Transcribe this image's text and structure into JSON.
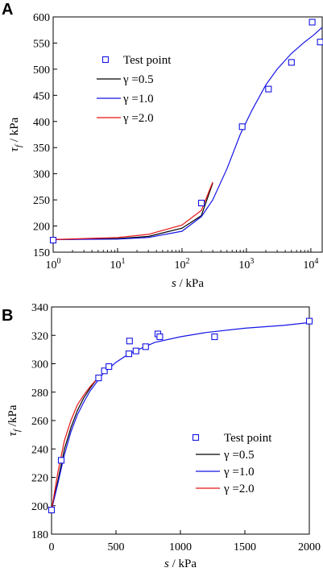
{
  "chart_data": [
    {
      "panel": "A",
      "type": "line",
      "xscale": "log",
      "xlim": [
        1,
        15000
      ],
      "ylim": [
        150,
        600
      ],
      "x_ticks": [
        1,
        10,
        100,
        1000,
        10000
      ],
      "x_tick_labels": [
        {
          "base": "10",
          "exp": "0"
        },
        {
          "base": "10",
          "exp": "1"
        },
        {
          "base": "10",
          "exp": "2"
        },
        {
          "base": "10",
          "exp": "3"
        },
        {
          "base": "10",
          "exp": "4"
        }
      ],
      "y_ticks": [
        150,
        200,
        250,
        300,
        350,
        400,
        450,
        500,
        550,
        600
      ],
      "y_tick_labels": [
        "150",
        "200",
        "250",
        "300",
        "350",
        "400",
        "450",
        "500",
        "550",
        "600"
      ],
      "xlabel": {
        "var": "s",
        "unit": " / kPa"
      },
      "ylabel": {
        "var": "τ",
        "sub": "f",
        "unit": " / kPa"
      },
      "legend": [
        "Test point",
        "γ =0.5",
        "γ =1.0",
        "γ =2.0"
      ],
      "test_points": [
        {
          "x": 1,
          "y": 173
        },
        {
          "x": 200,
          "y": 244
        },
        {
          "x": 860,
          "y": 390
        },
        {
          "x": 2200,
          "y": 462
        },
        {
          "x": 5000,
          "y": 513
        },
        {
          "x": 10500,
          "y": 590
        },
        {
          "x": 14000,
          "y": 552
        }
      ],
      "series": [
        {
          "name": "γ =0.5",
          "color": "#000000",
          "x": [
            1,
            10,
            30,
            100,
            200,
            300
          ],
          "y": [
            174,
            176,
            180,
            196,
            220,
            282
          ]
        },
        {
          "name": "γ =1.0",
          "color": "#1414e6",
          "x": [
            1,
            10,
            30,
            100,
            200,
            300,
            500,
            800,
            1200,
            2000,
            3000,
            5000,
            8000,
            11000,
            15000
          ],
          "y": [
            174,
            175,
            178,
            190,
            218,
            250,
            310,
            375,
            420,
            470,
            500,
            530,
            552,
            565,
            580
          ]
        },
        {
          "name": "γ =2.0",
          "color": "#e61414",
          "x": [
            1,
            10,
            30,
            100,
            200,
            300
          ],
          "y": [
            174,
            178,
            184,
            202,
            230,
            284
          ]
        }
      ]
    },
    {
      "panel": "B",
      "type": "line",
      "xscale": "linear",
      "xlim": [
        0,
        2000
      ],
      "ylim": [
        180,
        340
      ],
      "x_ticks": [
        0,
        500,
        1000,
        1500,
        2000
      ],
      "x_tick_labels": [
        "0",
        "500",
        "1000",
        "1500",
        "2000"
      ],
      "y_ticks": [
        180,
        200,
        220,
        240,
        260,
        280,
        300,
        320,
        340
      ],
      "y_tick_labels": [
        "180",
        "200",
        "220",
        "240",
        "260",
        "280",
        "300",
        "320",
        "340"
      ],
      "xlabel": {
        "var": "s",
        "unit": " / kPa"
      },
      "ylabel": {
        "var": "τ",
        "sub": "f",
        "unit": " /kPa"
      },
      "legend": [
        "Test point",
        "γ =0.5",
        "γ =1.0",
        "γ =2.0"
      ],
      "test_points": [
        {
          "x": 0,
          "y": 197
        },
        {
          "x": 75,
          "y": 232
        },
        {
          "x": 365,
          "y": 290
        },
        {
          "x": 410,
          "y": 295
        },
        {
          "x": 445,
          "y": 298
        },
        {
          "x": 600,
          "y": 307
        },
        {
          "x": 605,
          "y": 316
        },
        {
          "x": 655,
          "y": 309
        },
        {
          "x": 730,
          "y": 312
        },
        {
          "x": 825,
          "y": 321
        },
        {
          "x": 840,
          "y": 319
        },
        {
          "x": 1265,
          "y": 319
        },
        {
          "x": 2000,
          "y": 330
        }
      ],
      "series": [
        {
          "name": "γ =0.5",
          "color": "#000000",
          "x": [
            0,
            50,
            100,
            150,
            200,
            250,
            300,
            350
          ],
          "y": [
            197,
            218,
            240,
            255,
            267,
            276,
            283,
            289
          ]
        },
        {
          "name": "γ =1.0",
          "color": "#1414e6",
          "x": [
            0,
            50,
            100,
            150,
            200,
            250,
            300,
            400,
            500,
            600,
            700,
            800,
            1000,
            1200,
            1500,
            1800,
            2000
          ],
          "y": [
            197,
            216,
            236,
            252,
            264,
            273,
            281,
            293,
            301,
            307,
            311,
            315,
            319,
            322,
            325,
            327,
            329
          ]
        },
        {
          "name": "γ =2.0",
          "color": "#e61414",
          "x": [
            0,
            50,
            100,
            150,
            200,
            250,
            300,
            350
          ],
          "y": [
            197,
            224,
            246,
            260,
            271,
            278,
            284,
            289
          ]
        }
      ]
    }
  ]
}
